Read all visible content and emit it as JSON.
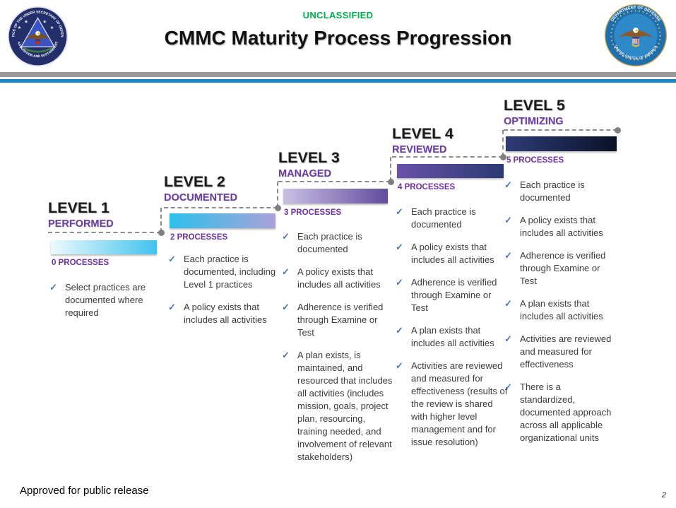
{
  "header": {
    "classification": "UNCLASSIFIED",
    "title": "CMMC Maturity Process Progression",
    "left_seal": {
      "arc_top": "OFFICE OF THE UNDER SECRETARY OF DEFENSE",
      "arc_bottom": "ACQUISITION AND SUSTAINMENT"
    },
    "right_seal": {
      "arc_top": "DEPARTMENT OF DEFENSE",
      "arc_bottom": "UNITED STATES OF AMERICA"
    }
  },
  "levels": [
    {
      "title": "LEVEL 1",
      "subtitle": "PERFORMED",
      "processes": "0 PROCESSES",
      "bar_colors": [
        "#eef9fd",
        "#40c3ee"
      ],
      "bullets": [
        "Select practices are documented where required"
      ]
    },
    {
      "title": "LEVEL 2",
      "subtitle": "DOCUMENTED",
      "processes": "2 PROCESSES",
      "bar_colors": [
        "#2cc0ec",
        "#aaa2d8"
      ],
      "bullets": [
        "Each practice is documented, including Level 1 practices",
        "A policy exists that includes all activities"
      ]
    },
    {
      "title": "LEVEL 3",
      "subtitle": "MANAGED",
      "processes": "3 PROCESSES",
      "bar_colors": [
        "#c9c0e4",
        "#624c9e"
      ],
      "bullets": [
        "Each practice is documented",
        "A policy exists that includes all activities",
        "Adherence is verified through Examine or Test",
        "A plan exists, is maintained, and resourced that includes all activities (includes mission, goals, project plan, resourcing, training needed, and involvement of relevant stakeholders)"
      ]
    },
    {
      "title": "LEVEL 4",
      "subtitle": "REVIEWED",
      "processes": "4 PROCESSES",
      "bar_colors": [
        "#6952a8",
        "#2b3a72"
      ],
      "bullets": [
        "Each practice is documented",
        "A policy exists that includes all activities",
        "Adherence is verified through Examine or Test",
        "A plan exists that includes all activities",
        "Activities are reviewed and measured for effectiveness (results of the review is shared with higher level management and for issue resolution)"
      ]
    },
    {
      "title": "LEVEL 5",
      "subtitle": "OPTIMIZING",
      "processes": "5 PROCESSES",
      "bar_colors": [
        "#2e3c75",
        "#0a1128"
      ],
      "bullets": [
        "Each practice is documented",
        "A policy exists that includes all activities",
        "Adherence is verified through Examine or Test",
        "A plan exists that includes all activities",
        "Activities are reviewed and measured for effectiveness",
        "There is a standardized, documented approach across all applicable organizational units"
      ]
    }
  ],
  "footer": {
    "approval": "Approved for public release",
    "page_number": "2"
  },
  "icons": {
    "check_glyph": "✓"
  },
  "colors": {
    "classification_green": "#00B050",
    "heading_purple": "#6b3fa0",
    "processes_purple": "#7030A0",
    "check_blue": "#4a74b4",
    "dashed_gray": "#8c8c8c",
    "top_bar_gray": "#9a9a9a",
    "top_bar_blue": "#1886c3"
  }
}
